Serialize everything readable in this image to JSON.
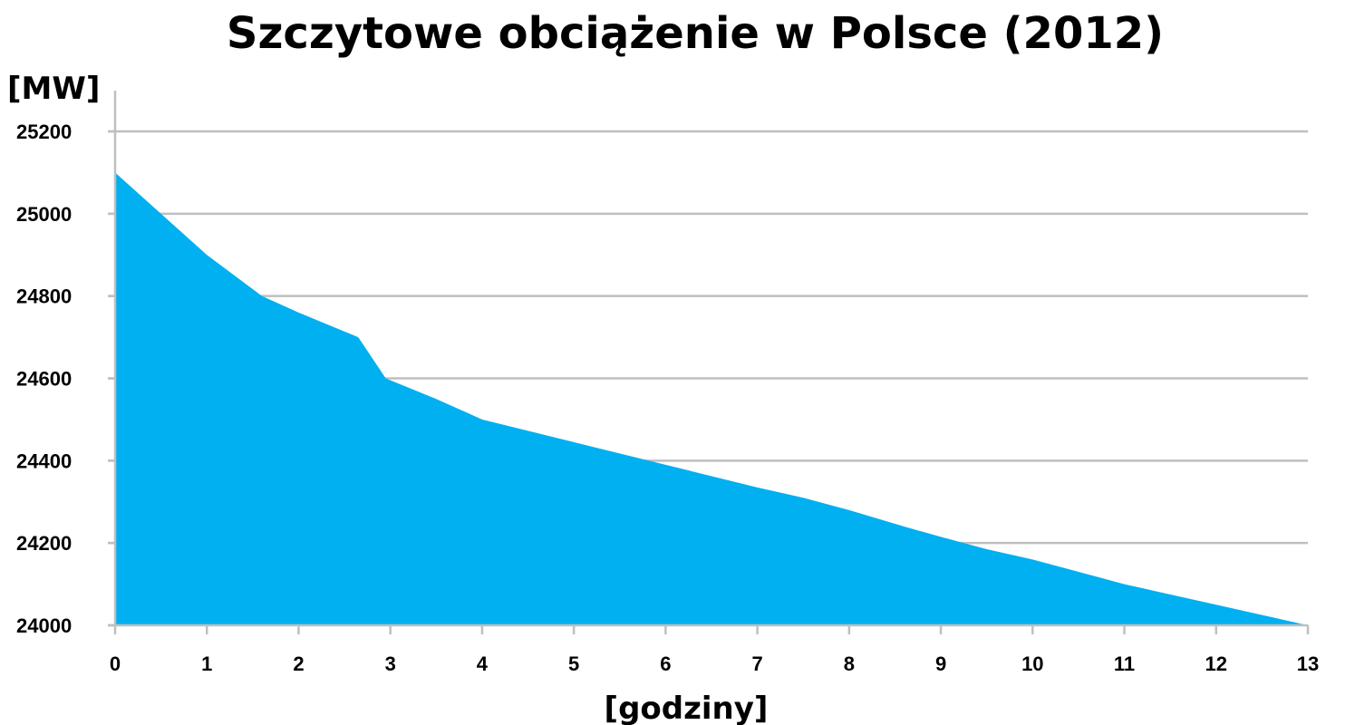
{
  "chart_data": {
    "type": "area",
    "title": "Szczytowe obciążenie w Polsce (2012)",
    "ylabel": "[MW]",
    "xlabel": "[godziny]",
    "xlim": [
      0,
      13
    ],
    "ylim": [
      24000,
      25200
    ],
    "x_ticks": [
      0,
      1,
      2,
      3,
      4,
      5,
      6,
      7,
      8,
      9,
      10,
      11,
      12,
      13
    ],
    "y_ticks": [
      24000,
      24200,
      24400,
      24600,
      24800,
      25000,
      25200
    ],
    "grid": true,
    "legend": "none",
    "fill_color": "#00b0f0",
    "grid_color": "#bfbfbf",
    "series": [
      {
        "x": [
          0,
          0.5,
          1,
          1.6,
          2,
          2.65,
          2.95,
          3.5,
          4,
          5,
          6,
          7,
          7.5,
          8,
          8.6,
          9,
          9.5,
          10,
          11,
          12,
          13
        ],
        "values": [
          25100,
          25000,
          24900,
          24800,
          24760,
          24700,
          24600,
          24550,
          24500,
          24445,
          24390,
          24335,
          24310,
          24280,
          24240,
          24215,
          24185,
          24160,
          24100,
          24050,
          24000
        ]
      }
    ]
  }
}
